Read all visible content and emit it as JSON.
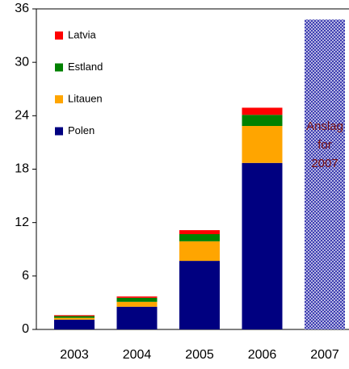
{
  "chart_data": {
    "type": "bar",
    "stacked": true,
    "categories": [
      "2003",
      "2004",
      "2005",
      "2006",
      "2007"
    ],
    "series": [
      {
        "name": "Polen",
        "color": "#000080",
        "values": [
          1.1,
          2.55,
          7.7,
          18.7,
          null
        ]
      },
      {
        "name": "Litauen",
        "color": "#ffa500",
        "values": [
          0.2,
          0.55,
          2.2,
          4.15,
          null
        ]
      },
      {
        "name": "Estland",
        "color": "#008000",
        "values": [
          0.2,
          0.45,
          0.8,
          1.25,
          null
        ]
      },
      {
        "name": "Latvia",
        "color": "#ff0000",
        "values": [
          0.1,
          0.15,
          0.45,
          0.8,
          null
        ]
      }
    ],
    "annotation": {
      "lines": [
        "Anslag",
        "for",
        "2007"
      ],
      "category": "2007",
      "value": 34.8,
      "color": "#3a3ab0"
    },
    "ylim": [
      0,
      36
    ],
    "yticks": [
      0,
      6,
      12,
      18,
      24,
      30,
      36
    ],
    "legend": "upper left"
  }
}
